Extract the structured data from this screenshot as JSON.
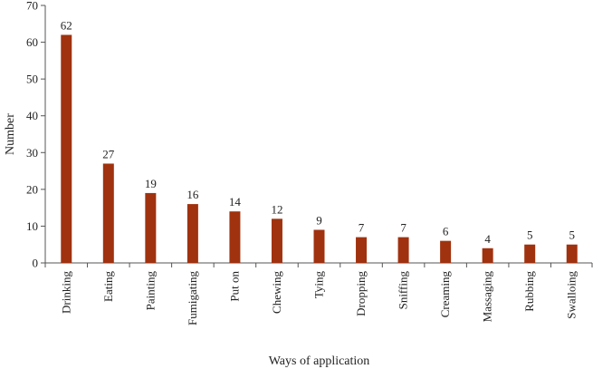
{
  "chart_data": {
    "type": "bar",
    "title": "",
    "xlabel": "Ways of application",
    "ylabel": "Number",
    "ylim": [
      0,
      70
    ],
    "yticks": [
      0,
      10,
      20,
      30,
      40,
      50,
      60,
      70
    ],
    "grid": false,
    "legend": "none",
    "bar_color": "#A0320F",
    "categories": [
      "Drinking",
      "Eating",
      "Painting",
      "Fumigating",
      "Put on",
      "Chewing",
      "Tying",
      "Dropping",
      "Sniffing",
      "Creaming",
      "Massaging",
      "Rubbing",
      "Swalloing"
    ],
    "values": [
      62,
      27,
      19,
      16,
      14,
      12,
      9,
      7,
      7,
      6,
      4,
      5,
      5
    ]
  }
}
